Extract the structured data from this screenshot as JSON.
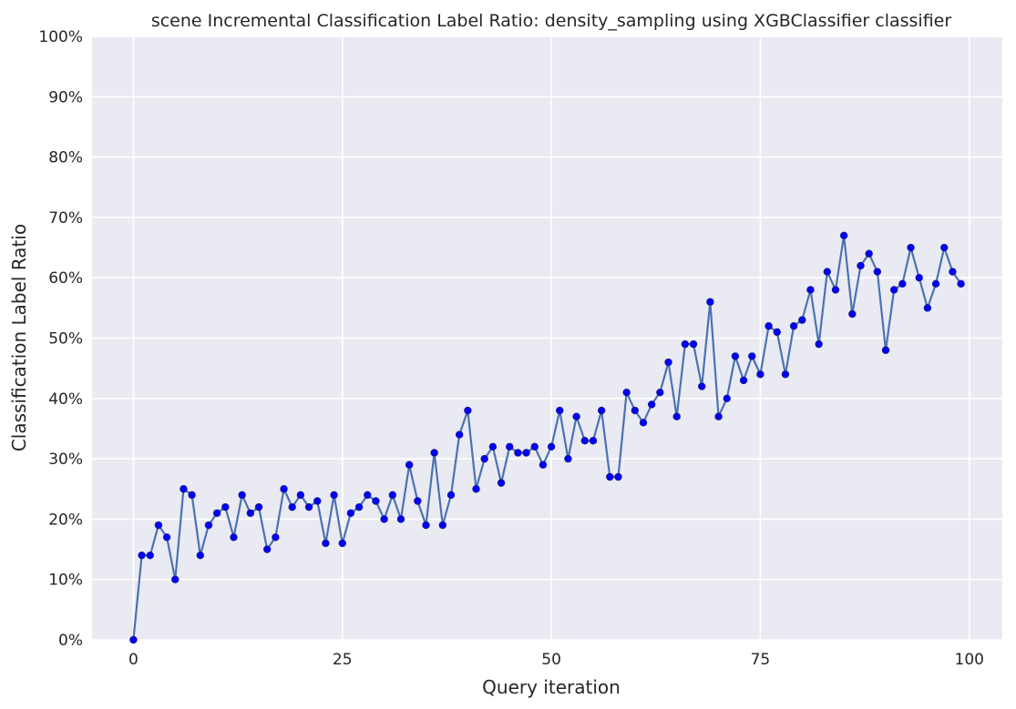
{
  "chart_data": {
    "type": "line",
    "title": "scene Incremental Classification Label Ratio: density_sampling using XGBClassifier classifier",
    "xlabel": "Query iteration",
    "ylabel": "Classification Label Ratio",
    "xlim": [
      -4.95,
      103.95
    ],
    "ylim": [
      0,
      100
    ],
    "xticks": [
      0,
      25,
      50,
      75,
      100
    ],
    "xtick_labels": [
      "0",
      "25",
      "50",
      "75",
      "100"
    ],
    "yticks": [
      0,
      10,
      20,
      30,
      40,
      50,
      60,
      70,
      80,
      90,
      100
    ],
    "ytick_labels": [
      "0%",
      "10%",
      "20%",
      "30%",
      "40%",
      "50%",
      "60%",
      "70%",
      "80%",
      "90%",
      "100%"
    ],
    "grid": true,
    "line_color": "#4c72b0",
    "marker_color": "#0000ff",
    "background_color": "#eaeaf2",
    "series": [
      {
        "name": "label ratio",
        "x": [
          0,
          1,
          2,
          3,
          4,
          5,
          6,
          7,
          8,
          9,
          10,
          11,
          12,
          13,
          14,
          15,
          16,
          17,
          18,
          19,
          20,
          21,
          22,
          23,
          24,
          25,
          26,
          27,
          28,
          29,
          30,
          31,
          32,
          33,
          34,
          35,
          36,
          37,
          38,
          39,
          40,
          41,
          42,
          43,
          44,
          45,
          46,
          47,
          48,
          49,
          50,
          51,
          52,
          53,
          54,
          55,
          56,
          57,
          58,
          59,
          60,
          61,
          62,
          63,
          64,
          65,
          66,
          67,
          68,
          69,
          70,
          71,
          72,
          73,
          74,
          75,
          76,
          77,
          78,
          79,
          80,
          81,
          82,
          83,
          84,
          85,
          86,
          87,
          88,
          89,
          90,
          91,
          92,
          93,
          94,
          95,
          96,
          97,
          98,
          99
        ],
        "values": [
          0,
          14,
          14,
          19,
          17,
          10,
          25,
          24,
          14,
          19,
          21,
          22,
          17,
          24,
          21,
          22,
          15,
          17,
          25,
          22,
          24,
          22,
          23,
          16,
          24,
          16,
          21,
          22,
          24,
          23,
          20,
          24,
          20,
          29,
          23,
          19,
          31,
          19,
          24,
          34,
          38,
          25,
          30,
          32,
          26,
          32,
          31,
          31,
          32,
          29,
          32,
          38,
          30,
          37,
          33,
          33,
          38,
          27,
          27,
          41,
          38,
          36,
          39,
          41,
          46,
          37,
          49,
          49,
          42,
          56,
          37,
          40,
          47,
          43,
          47,
          44,
          52,
          51,
          44,
          52,
          53,
          58,
          49,
          61,
          58,
          67,
          54,
          62,
          64,
          61,
          48,
          58,
          59,
          65,
          60,
          55,
          59,
          65,
          61,
          59
        ]
      }
    ]
  }
}
